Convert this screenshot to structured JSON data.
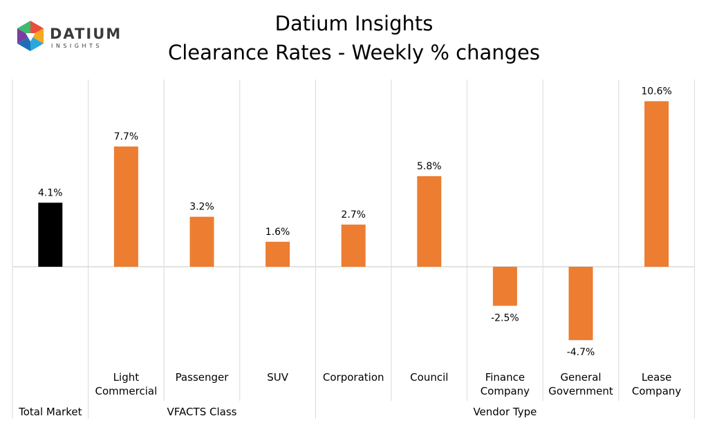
{
  "logo": {
    "word": "DATIUM",
    "sub": "INSIGHTS",
    "colors": [
      "#e94e3c",
      "#f7a81b",
      "#2aa7df",
      "#1f6fb8",
      "#7b3fa0",
      "#3dbb6f"
    ]
  },
  "colors": {
    "bar_default": "#ed7d31",
    "bar_total": "#000000",
    "grid": "#d9d9d9",
    "text": "#000000"
  },
  "chart_data": {
    "type": "bar",
    "title": "Datium Insights",
    "subtitle": "Clearance Rates - Weekly % changes",
    "unit": "%",
    "categories": [
      [
        "Total Market"
      ],
      [
        "Light",
        "Commercial"
      ],
      [
        "Passenger"
      ],
      [
        "SUV"
      ],
      [
        "Corporation"
      ],
      [
        "Council"
      ],
      [
        "Finance",
        "Company"
      ],
      [
        "General",
        "Government"
      ],
      [
        "Lease",
        "Company"
      ]
    ],
    "values": [
      4.1,
      7.7,
      3.2,
      1.6,
      2.7,
      5.8,
      -2.5,
      -4.7,
      10.6
    ],
    "data_labels": [
      "4.1%",
      "7.7%",
      "3.2%",
      "1.6%",
      "2.7%",
      "5.8%",
      "-2.5%",
      "-4.7%",
      "10.6%"
    ],
    "groups": [
      {
        "name": "",
        "members": [
          0
        ]
      },
      {
        "name": "VFACTS Class",
        "members": [
          1,
          2,
          3
        ]
      },
      {
        "name": "Vendor Type",
        "members": [
          4,
          5,
          6,
          7,
          8
        ]
      }
    ],
    "highlight_index": 0,
    "ylim": [
      -6,
      11.5
    ],
    "grid": false,
    "legend": "none"
  }
}
